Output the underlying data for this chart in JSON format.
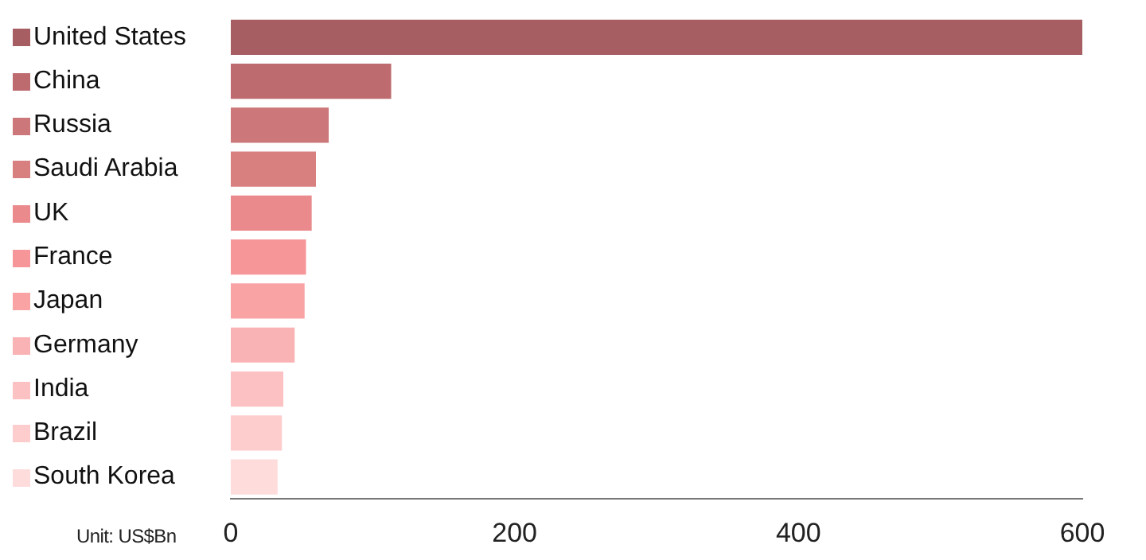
{
  "chart_data": {
    "type": "bar",
    "orientation": "horizontal",
    "categories": [
      "United States",
      "China",
      "Russia",
      "Saudi Arabia",
      "UK",
      "France",
      "Japan",
      "Germany",
      "India",
      "Brazil",
      "South Korea"
    ],
    "values": [
      600,
      113,
      69,
      60,
      57,
      53,
      52,
      45,
      37,
      36,
      33
    ],
    "colors": [
      "#a65e63",
      "#bd6b6e",
      "#cc7779",
      "#d88080",
      "#ea8a8c",
      "#f79698",
      "#f9a3a4",
      "#fab3b4",
      "#fcc1c2",
      "#fdcccd",
      "#fedcdc"
    ],
    "xlim": [
      0,
      600
    ],
    "xticks": [
      0,
      200,
      400,
      600
    ],
    "grid": false,
    "legend": false,
    "annotations": [
      "Unit: US$Bn"
    ]
  }
}
